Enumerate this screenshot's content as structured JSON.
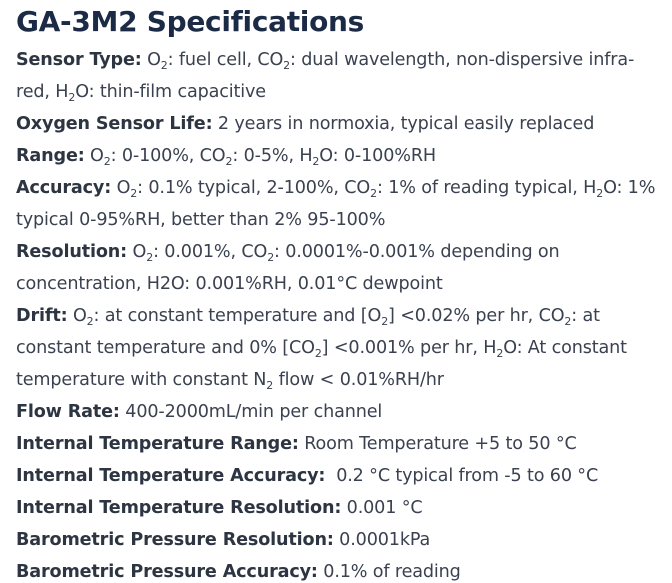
{
  "title": "GA-3M2 Specifications",
  "specs": [
    {
      "label": "Sensor Type:",
      "segments": [
        " O",
        "2",
        ": fuel cell, CO",
        "2",
        ": dual wavelength, non-dispersive infra-red, H",
        "2",
        "O: thin-film capacitive"
      ]
    },
    {
      "label": "Oxygen Sensor Life:",
      "segments": [
        " 2 years in normoxia, typical easily replaced"
      ]
    },
    {
      "label": "Range:",
      "segments": [
        " O",
        "2",
        ": 0-100%, CO",
        "2",
        ": 0-5%, H",
        "2",
        "O: 0-100%RH"
      ]
    },
    {
      "label": "Accuracy:",
      "segments": [
        " O",
        "2",
        ": 0.1% typical, 2-100%, CO",
        "2",
        ": 1% of reading typical, H",
        "2",
        "O: 1% typical 0-95%RH, better than 2% 95-100%"
      ]
    },
    {
      "label": "Resolution:",
      "segments": [
        " O",
        "2",
        ": 0.001%, CO",
        "2",
        ": 0.0001%-0.001% depending on concentration, H2O: 0.001%RH, 0.01°C dewpoint"
      ]
    },
    {
      "label": "Drift:",
      "segments": [
        " O",
        "2",
        ": at constant temperature and [O",
        "2",
        "] <0.02% per hr, CO",
        "2",
        ": at constant temperature and 0% [CO",
        "2",
        "] <0.001% per hr, H",
        "2",
        "O: At constant temperature with constant N",
        "2",
        " flow < 0.01%RH/hr"
      ]
    },
    {
      "label": "Flow Rate:",
      "segments": [
        " 400-2000mL/min per channel"
      ]
    },
    {
      "label": "Internal Temperature Range:",
      "segments": [
        " Room Temperature +5 to 50 °C"
      ]
    },
    {
      "label": "Internal Temperature Accuracy:",
      "segments": [
        "  0.2 °C typical from -5 to 60 °C"
      ]
    },
    {
      "label": "Internal Temperature Resolution:",
      "segments": [
        " 0.001 °C"
      ]
    },
    {
      "label": "Barometric Pressure Resolution:",
      "segments": [
        " 0.0001kPa"
      ]
    },
    {
      "label": "Barometric Pressure Accuracy:",
      "segments": [
        " 0.1% of reading"
      ]
    }
  ]
}
